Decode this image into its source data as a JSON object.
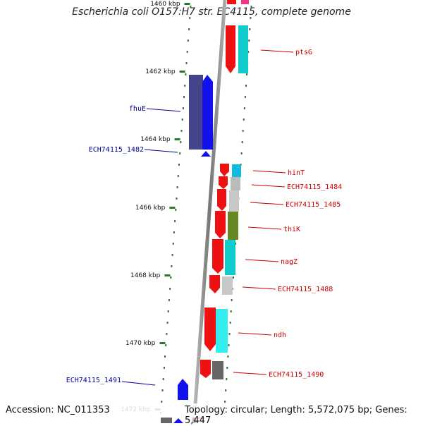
{
  "title": "Escherichia coli O157:H7 str. EC4115, complete genome",
  "footer": {
    "accession": "Accession: NC_011353",
    "summary": "Topology: circular; Length: 5,572,075 bp; Genes: 5,447"
  },
  "colors": {
    "minus_label": "#000099",
    "plus_label": "#cc0000",
    "tick": "#2a7a2a",
    "backbone": "#888888"
  },
  "ticks": [
    {
      "label": "1460 kbp"
    },
    {
      "label": "1462 kbp"
    },
    {
      "label": "1464 kbp"
    },
    {
      "label": "1466 kbp"
    },
    {
      "label": "1468 kbp"
    },
    {
      "label": "1470 kbp"
    },
    {
      "label": "1472 kbp"
    }
  ],
  "genes_minus": [
    {
      "name": "fhuE"
    },
    {
      "name": "ECH74115_1482"
    },
    {
      "name": "ECH74115_1491"
    }
  ],
  "genes_plus": [
    {
      "name": "ptsG"
    },
    {
      "name": "hinT"
    },
    {
      "name": "ECH74115_1484"
    },
    {
      "name": "ECH74115_1485"
    },
    {
      "name": "thiK"
    },
    {
      "name": "nagZ"
    },
    {
      "name": "ECH74115_1488"
    },
    {
      "name": "ndh"
    },
    {
      "name": "ECH74115_1490"
    }
  ]
}
